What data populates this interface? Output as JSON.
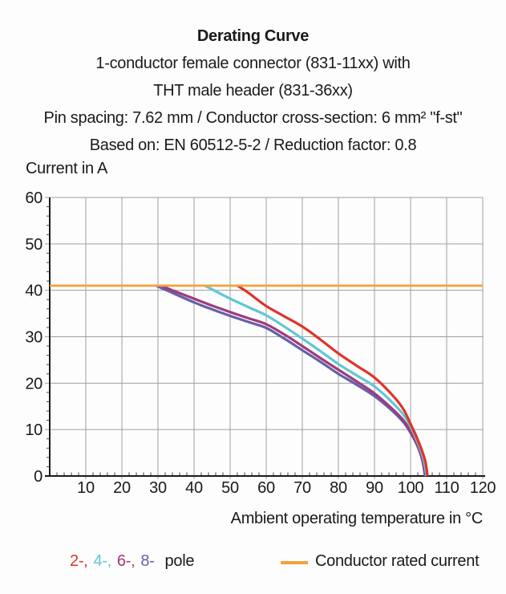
{
  "header": {
    "title": "Derating Curve",
    "subtitle_lines": [
      "1-conductor female connector (831-11xx) with",
      "THT male header (831-36xx)",
      "Pin spacing: 7.62 mm / Conductor cross-section: 6 mm² \"f-st\"",
      "Based on: EN 60512-5-2 / Reduction factor: 0.8"
    ]
  },
  "chart_data": {
    "type": "line",
    "title": "Derating Curve",
    "xlabel": "Ambient operating temperature in °C",
    "ylabel": "Current in A",
    "xlim": [
      0,
      120
    ],
    "ylim": [
      0,
      60
    ],
    "x_ticks": [
      10,
      20,
      30,
      40,
      50,
      60,
      70,
      80,
      90,
      100,
      110,
      120
    ],
    "y_ticks": [
      0,
      10,
      20,
      30,
      40,
      50,
      60
    ],
    "minor_tick_step": 2,
    "grid": true,
    "legend_position": "bottom",
    "reference_line": {
      "name": "Conductor rated current",
      "value": 41,
      "color": "#F5A03C"
    },
    "series": [
      {
        "name": "8-pole",
        "color": "#6261A9",
        "points": [
          [
            29.5,
            41
          ],
          [
            33,
            39.8
          ],
          [
            40,
            37.4
          ],
          [
            45,
            35.9
          ],
          [
            50,
            34.5
          ],
          [
            55,
            33.2
          ],
          [
            60,
            31.9
          ],
          [
            65,
            29.6
          ],
          [
            70,
            27.1
          ],
          [
            75,
            24.6
          ],
          [
            80,
            22.0
          ],
          [
            85,
            19.7
          ],
          [
            90,
            17.2
          ],
          [
            95,
            14.0
          ],
          [
            98,
            11.6
          ],
          [
            100,
            9.3
          ],
          [
            102,
            6.3
          ],
          [
            103.3,
            3.2
          ],
          [
            104.0,
            0
          ]
        ]
      },
      {
        "name": "6-pole",
        "color": "#A23A78",
        "points": [
          [
            31,
            41
          ],
          [
            34,
            40.0
          ],
          [
            40,
            38.2
          ],
          [
            45,
            36.7
          ],
          [
            50,
            35.3
          ],
          [
            55,
            34.0
          ],
          [
            60,
            32.7
          ],
          [
            65,
            30.5
          ],
          [
            70,
            28.0
          ],
          [
            75,
            25.4
          ],
          [
            80,
            22.9
          ],
          [
            85,
            20.4
          ],
          [
            90,
            17.8
          ],
          [
            95,
            14.4
          ],
          [
            98,
            12.0
          ],
          [
            100,
            9.6
          ],
          [
            102,
            6.5
          ],
          [
            103.4,
            3.2
          ],
          [
            104.1,
            0
          ]
        ]
      },
      {
        "name": "4-pole",
        "color": "#5FC7D7",
        "points": [
          [
            43,
            41
          ],
          [
            46,
            39.8
          ],
          [
            50,
            38.2
          ],
          [
            55,
            36.4
          ],
          [
            60,
            34.6
          ],
          [
            65,
            32.2
          ],
          [
            70,
            29.6
          ],
          [
            75,
            26.9
          ],
          [
            80,
            24.1
          ],
          [
            85,
            21.7
          ],
          [
            90,
            19.3
          ],
          [
            95,
            15.8
          ],
          [
            98,
            13.2
          ],
          [
            100,
            10.6
          ],
          [
            102,
            7.2
          ],
          [
            103.7,
            3.3
          ],
          [
            104.4,
            0
          ]
        ]
      },
      {
        "name": "2-pole",
        "color": "#E0332A",
        "points": [
          [
            52,
            41
          ],
          [
            55,
            39.5
          ],
          [
            60,
            36.6
          ],
          [
            65,
            34.4
          ],
          [
            70,
            32.2
          ],
          [
            75,
            29.4
          ],
          [
            80,
            26.4
          ],
          [
            85,
            23.8
          ],
          [
            90,
            21.2
          ],
          [
            95,
            17.4
          ],
          [
            98,
            14.4
          ],
          [
            100,
            11.2
          ],
          [
            102,
            7.8
          ],
          [
            104,
            3.4
          ],
          [
            104.7,
            0
          ]
        ]
      }
    ]
  },
  "legend": {
    "pole_items": [
      {
        "label": "2-,",
        "color": "#E0332A"
      },
      {
        "label": "4-,",
        "color": "#5FC7D7"
      },
      {
        "label": "6-,",
        "color": "#A23A78"
      },
      {
        "label": "8-",
        "color": "#6261A9"
      }
    ],
    "pole_word": "pole",
    "rated_label": "Conductor rated current",
    "rated_color": "#F5A03C"
  },
  "colors": {
    "background": "#FDFDFD",
    "text": "#1A1A1A",
    "grid": "#9E9E9E",
    "axis": "#1A1A1A"
  }
}
